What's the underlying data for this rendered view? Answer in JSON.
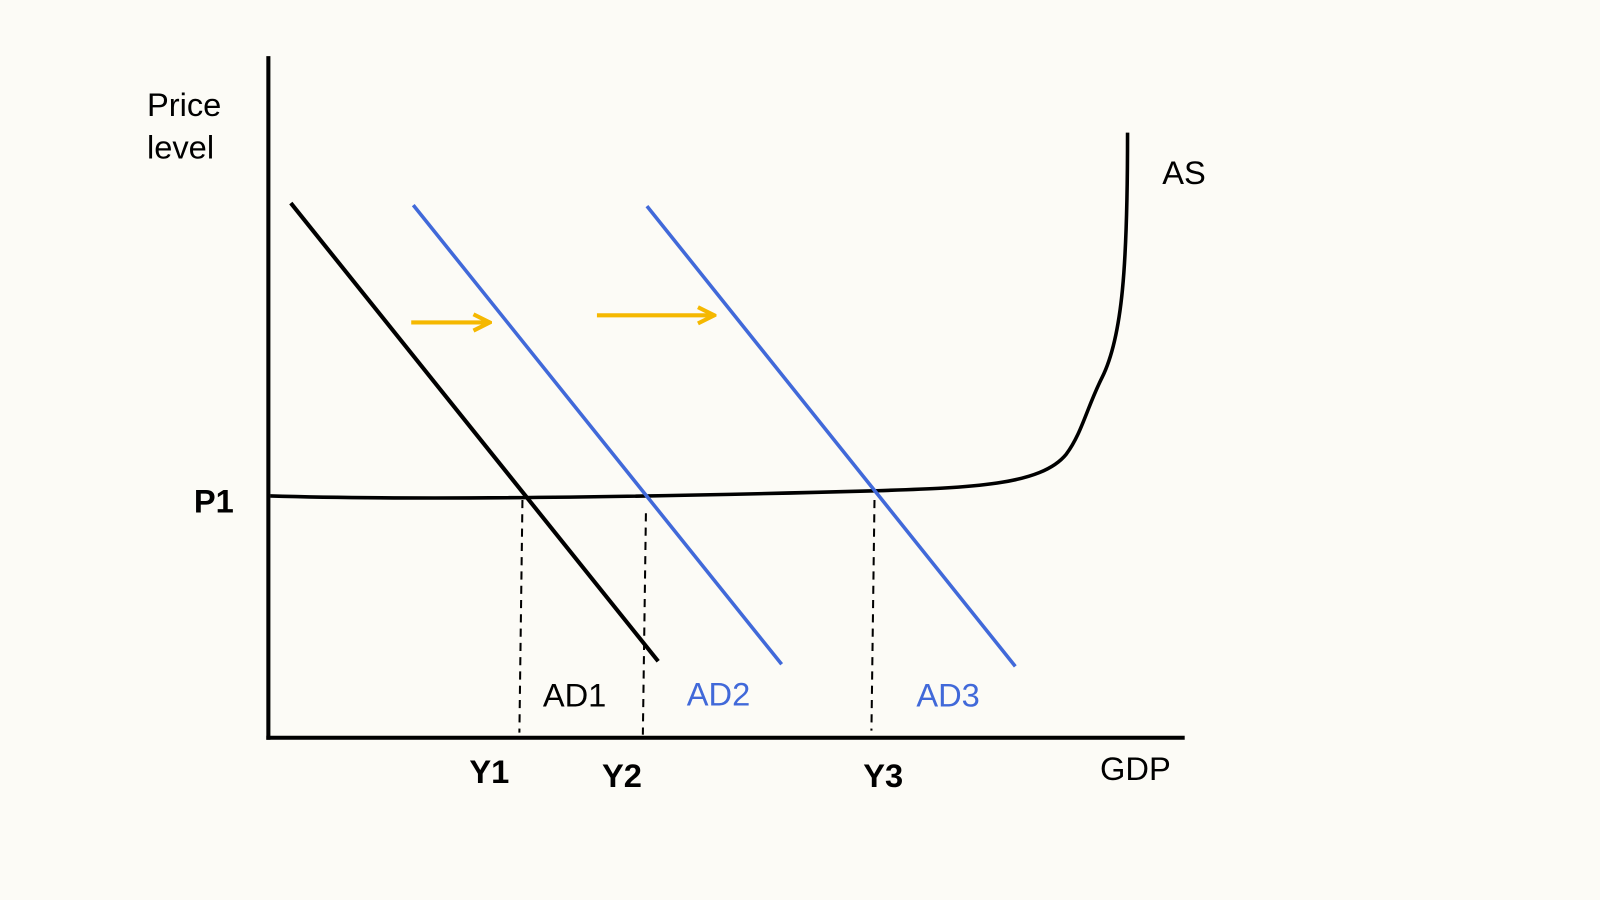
{
  "axes": {
    "y_label": [
      "Price",
      "level"
    ],
    "x_label": "GDP"
  },
  "curves": {
    "supply": "AS",
    "demand": [
      "AD1",
      "AD2",
      "AD3"
    ]
  },
  "levels": {
    "price": "P1",
    "outputs": [
      "Y1",
      "Y2",
      "Y3"
    ]
  }
}
